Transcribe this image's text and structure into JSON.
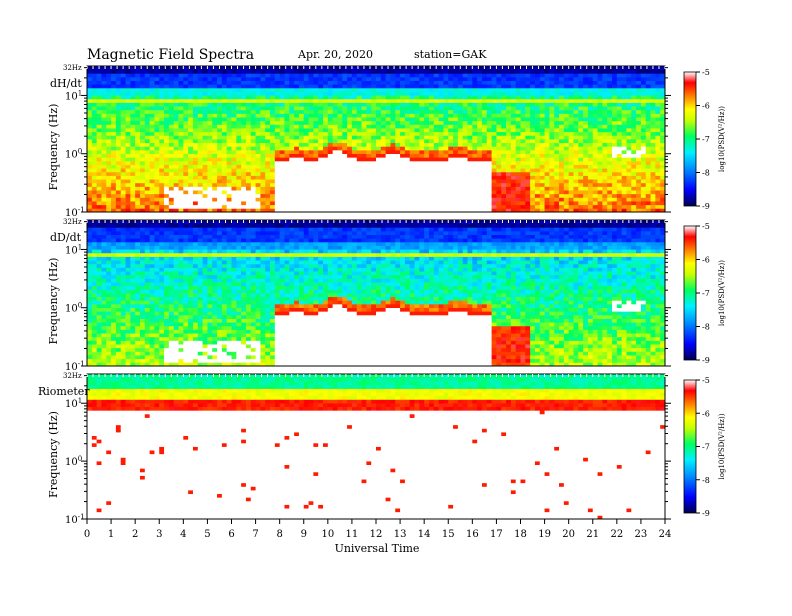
{
  "header": {
    "title": "Magnetic  Field  Spectra",
    "date": "Apr. 20, 2020",
    "station": "station=GAK"
  },
  "colors": {
    "spectrogram_colormap": [
      "#000080",
      "#0000ff",
      "#0088ff",
      "#00e0ff",
      "#00ff80",
      "#c0ff00",
      "#ffff00",
      "#ff8000",
      "#ff0000",
      "#ffffff"
    ]
  },
  "chart_data": [
    {
      "type": "heatmap",
      "panel_label": "dH/dt",
      "ylabel": "Frequency  (Hz)",
      "y_scale": "log",
      "y_ticks": [
        "10^-1",
        "10^0",
        "10^1"
      ],
      "y_top_label": "32Hz",
      "ylim_hz": [
        0.1,
        32
      ],
      "xlim_hours": [
        0,
        24
      ],
      "colorbar": {
        "label": "log10(PSD(V²/Hz))",
        "ticks": [
          "-5",
          "-6",
          "-7",
          "-8",
          "-9"
        ],
        "range": [
          -9,
          -5
        ]
      }
    },
    {
      "type": "heatmap",
      "panel_label": "dD/dt",
      "ylabel": "Frequency  (Hz)",
      "y_scale": "log",
      "y_ticks": [
        "10^-1",
        "10^0",
        "10^1"
      ],
      "y_top_label": "32Hz",
      "ylim_hz": [
        0.1,
        32
      ],
      "xlim_hours": [
        0,
        24
      ],
      "colorbar": {
        "label": "log10(PSD(V²/Hz))",
        "ticks": [
          "-5",
          "-6",
          "-7",
          "-8",
          "-9"
        ],
        "range": [
          -9,
          -5
        ]
      }
    },
    {
      "type": "heatmap",
      "panel_label": "Riometer",
      "ylabel": "Frequency  (Hz)",
      "y_scale": "log",
      "y_ticks": [
        "10^-1",
        "10^0",
        "10^1"
      ],
      "y_top_label": "32Hz",
      "ylim_hz": [
        0.1,
        32
      ],
      "xlim_hours": [
        0,
        24
      ],
      "colorbar": {
        "label": "log10(PSD(V²/Hz))",
        "ticks": [
          "-5",
          "-6",
          "-7",
          "-8",
          "-9"
        ],
        "range": [
          -9,
          -5
        ]
      }
    }
  ],
  "x_axis": {
    "label": "Universal  Time",
    "ticks": [
      "0",
      "1",
      "2",
      "3",
      "4",
      "5",
      "6",
      "7",
      "8",
      "9",
      "10",
      "11",
      "12",
      "13",
      "14",
      "15",
      "16",
      "17",
      "18",
      "19",
      "20",
      "21",
      "22",
      "23",
      "24"
    ]
  }
}
